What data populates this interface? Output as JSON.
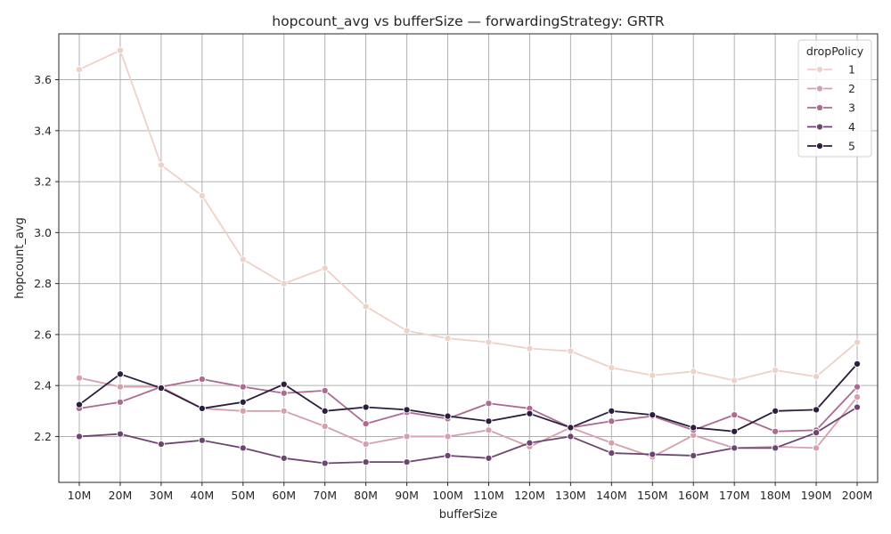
{
  "chart_data": {
    "type": "line",
    "title": "hopcount_avg vs bufferSize — forwardingStrategy: GRTR",
    "xlabel": "bufferSize",
    "ylabel": "hopcount_avg",
    "categories": [
      "10M",
      "20M",
      "30M",
      "40M",
      "50M",
      "60M",
      "70M",
      "80M",
      "90M",
      "100M",
      "110M",
      "120M",
      "130M",
      "140M",
      "150M",
      "160M",
      "170M",
      "180M",
      "190M",
      "200M"
    ],
    "ylim": [
      2.02,
      3.78
    ],
    "yticks": [
      2.2,
      2.4,
      2.6,
      2.8,
      3.0,
      3.2,
      3.4,
      3.6
    ],
    "grid": true,
    "legend": {
      "title": "dropPolicy",
      "placement": "top-right"
    },
    "series": [
      {
        "name": "1",
        "color": "#eed1c7",
        "values": [
          3.64,
          3.715,
          3.265,
          3.145,
          2.895,
          2.8,
          2.86,
          2.71,
          2.615,
          2.585,
          2.57,
          2.545,
          2.535,
          2.47,
          2.44,
          2.455,
          2.42,
          2.46,
          2.435,
          2.57
        ]
      },
      {
        "name": "2",
        "color": "#d59fab",
        "values": [
          2.43,
          2.395,
          2.395,
          2.31,
          2.3,
          2.3,
          2.24,
          2.17,
          2.2,
          2.2,
          2.225,
          2.16,
          2.235,
          2.175,
          2.12,
          2.205,
          2.155,
          2.16,
          2.155,
          2.355
        ]
      },
      {
        "name": "3",
        "color": "#ac6b91",
        "values": [
          2.31,
          2.335,
          2.395,
          2.425,
          2.395,
          2.37,
          2.38,
          2.25,
          2.295,
          2.27,
          2.33,
          2.31,
          2.235,
          2.26,
          2.28,
          2.225,
          2.285,
          2.22,
          2.225,
          2.395
        ]
      },
      {
        "name": "4",
        "color": "#6e4571",
        "values": [
          2.2,
          2.21,
          2.17,
          2.185,
          2.155,
          2.115,
          2.095,
          2.1,
          2.1,
          2.125,
          2.115,
          2.175,
          2.2,
          2.135,
          2.13,
          2.125,
          2.155,
          2.155,
          2.215,
          2.315
        ]
      },
      {
        "name": "5",
        "color": "#2d1e3e",
        "values": [
          2.325,
          2.445,
          2.39,
          2.31,
          2.335,
          2.405,
          2.3,
          2.315,
          2.305,
          2.28,
          2.26,
          2.29,
          2.235,
          2.3,
          2.285,
          2.235,
          2.22,
          2.3,
          2.305,
          2.485
        ]
      }
    ]
  }
}
